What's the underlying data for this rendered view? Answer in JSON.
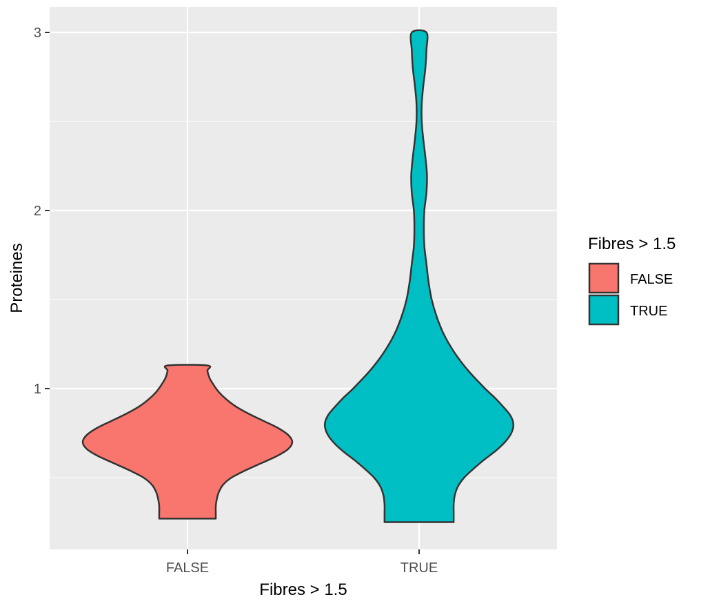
{
  "chart_data": {
    "type": "violin",
    "title": "",
    "xlabel": "Fibres > 1.5",
    "ylabel": "Proteines",
    "categories": [
      "FALSE",
      "TRUE"
    ],
    "y_ticks": [
      "1",
      "2",
      "3"
    ],
    "ylim": [
      0.14,
      3.14
    ],
    "grid": true,
    "legend": {
      "title": "Fibres > 1.5",
      "position": "right",
      "entries": [
        "FALSE",
        "TRUE"
      ]
    },
    "colors": {
      "FALSE": "#F8766D",
      "TRUE": "#00BFC4",
      "panel": "#EBEBEB",
      "grid": "#FFFFFF",
      "outline": "#333333"
    },
    "series": [
      {
        "category": "FALSE",
        "min": 0.27,
        "max": 1.13,
        "density_profile": [
          [
            0.27,
            0.27
          ],
          [
            0.3,
            0.27
          ],
          [
            0.34,
            0.27
          ],
          [
            0.38,
            0.28
          ],
          [
            0.42,
            0.3
          ],
          [
            0.46,
            0.34
          ],
          [
            0.5,
            0.42
          ],
          [
            0.54,
            0.55
          ],
          [
            0.58,
            0.7
          ],
          [
            0.62,
            0.85
          ],
          [
            0.66,
            0.96
          ],
          [
            0.7,
            1.0
          ],
          [
            0.74,
            0.96
          ],
          [
            0.78,
            0.86
          ],
          [
            0.82,
            0.72
          ],
          [
            0.86,
            0.58
          ],
          [
            0.9,
            0.46
          ],
          [
            0.94,
            0.37
          ],
          [
            0.98,
            0.3
          ],
          [
            1.02,
            0.25
          ],
          [
            1.06,
            0.21
          ],
          [
            1.1,
            0.19
          ],
          [
            1.13,
            0.19
          ]
        ]
      },
      {
        "category": "TRUE",
        "min": 0.25,
        "max": 3.0,
        "density_profile": [
          [
            0.25,
            0.33
          ],
          [
            0.3,
            0.33
          ],
          [
            0.35,
            0.33
          ],
          [
            0.4,
            0.34
          ],
          [
            0.45,
            0.37
          ],
          [
            0.5,
            0.43
          ],
          [
            0.55,
            0.52
          ],
          [
            0.6,
            0.62
          ],
          [
            0.65,
            0.73
          ],
          [
            0.7,
            0.82
          ],
          [
            0.75,
            0.88
          ],
          [
            0.8,
            0.9
          ],
          [
            0.85,
            0.87
          ],
          [
            0.9,
            0.8
          ],
          [
            0.95,
            0.72
          ],
          [
            1.0,
            0.63
          ],
          [
            1.1,
            0.47
          ],
          [
            1.2,
            0.34
          ],
          [
            1.3,
            0.24
          ],
          [
            1.4,
            0.17
          ],
          [
            1.5,
            0.12
          ],
          [
            1.6,
            0.09
          ],
          [
            1.7,
            0.07
          ],
          [
            1.8,
            0.05
          ],
          [
            1.9,
            0.045
          ],
          [
            2.0,
            0.05
          ],
          [
            2.1,
            0.07
          ],
          [
            2.2,
            0.075
          ],
          [
            2.3,
            0.06
          ],
          [
            2.4,
            0.04
          ],
          [
            2.5,
            0.025
          ],
          [
            2.6,
            0.025
          ],
          [
            2.7,
            0.04
          ],
          [
            2.8,
            0.06
          ],
          [
            2.9,
            0.07
          ],
          [
            3.0,
            0.07
          ]
        ]
      }
    ]
  }
}
